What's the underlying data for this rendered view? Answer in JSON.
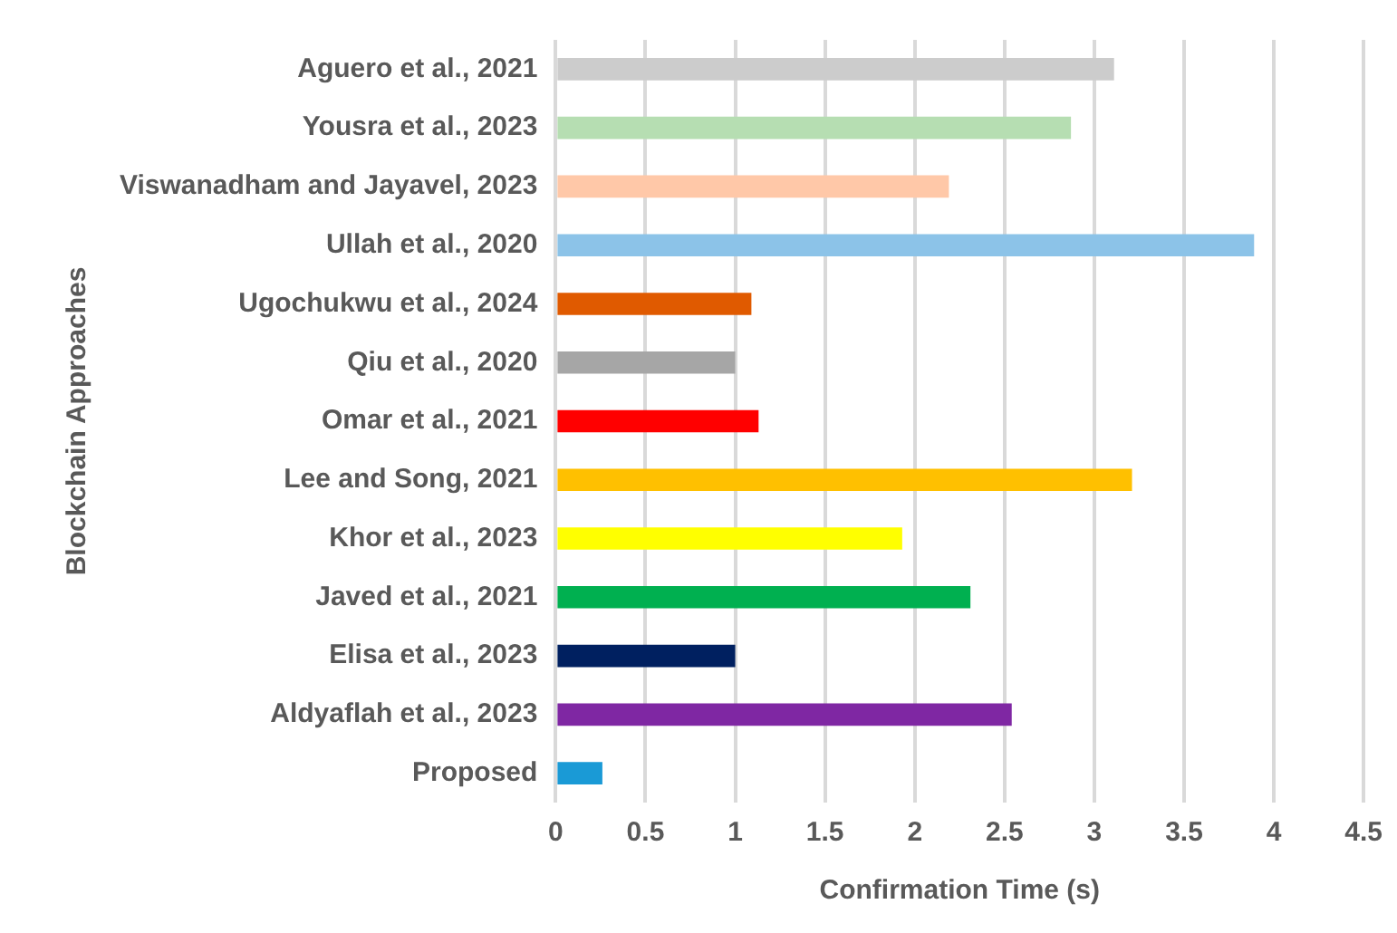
{
  "chart_data": {
    "type": "bar",
    "orientation": "horizontal",
    "xlabel": "Confirmation Time (s)",
    "ylabel": "Blockchain Approaches",
    "categories": [
      "Aguero et al., 2021",
      "Yousra et al., 2023",
      "Viswanadham and Jayavel, 2023",
      "Ullah et al., 2020",
      "Ugochukwu et al., 2024",
      "Qiu et al., 2020",
      "Omar et al., 2021",
      "Lee and Song, 2021",
      "Khor et al., 2023",
      "Javed et al., 2021",
      "Elisa et al., 2023",
      "Aldyaflah et al., 2023",
      "Proposed"
    ],
    "values": [
      3.11,
      2.87,
      2.19,
      3.89,
      1.09,
      1.0,
      1.13,
      3.21,
      1.93,
      2.31,
      1.0,
      2.54,
      0.26
    ],
    "colors": [
      "#cccccc",
      "#b6deb2",
      "#ffc8a8",
      "#8cc3e8",
      "#e05a00",
      "#a6a6a6",
      "#ff0000",
      "#ffc000",
      "#ffff00",
      "#00b050",
      "#002060",
      "#7f27a3",
      "#1a9ad6"
    ],
    "xlim": [
      0,
      4.5
    ],
    "xticks": [
      0,
      0.5,
      1,
      1.5,
      2,
      2.5,
      3,
      3.5,
      4,
      4.5
    ],
    "grid": "x",
    "legend": false
  }
}
